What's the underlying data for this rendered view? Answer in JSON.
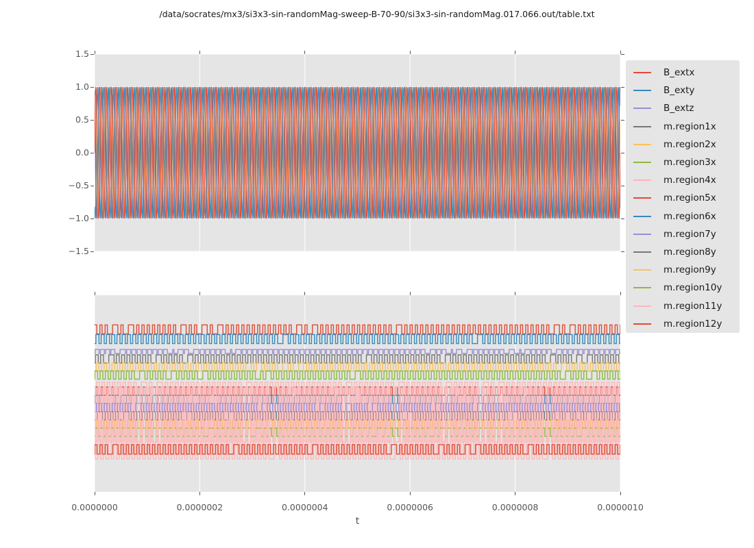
{
  "figure": {
    "title": "/data/socrates/mx3/si3x3-sin-randomMag-sweep-B-70-90/si3x3-sin-randomMag.017.066.out/table.txt"
  },
  "colors": {
    "figure_bg": "#ffffff",
    "axes_bg": "#e5e5e5",
    "grid": "#ffffff",
    "tick": "#555555",
    "text": "#1a1a1a",
    "palette": [
      "#E24A33",
      "#348ABD",
      "#988ED5",
      "#777777",
      "#FBC15E",
      "#8EBA42",
      "#FFB5B8"
    ]
  },
  "axes": {
    "xlabel": "t",
    "xtick_labels": [
      "0.0000000",
      "0.0000002",
      "0.0000004",
      "0.0000006",
      "0.0000008",
      "0.0000010"
    ],
    "xtick_values": [
      0,
      2e-07,
      4e-07,
      6e-07,
      8e-07,
      1e-06
    ],
    "top_ytick_labels": [
      "1.5",
      "1.0",
      "0.5",
      "0.0",
      "−0.5",
      "−1.0",
      "−1.5"
    ],
    "top_ytick_values": [
      1.5,
      1.0,
      0.5,
      0.0,
      -0.5,
      -1.0,
      -1.5
    ]
  },
  "legend": {
    "entries": [
      {
        "label": "B_extx",
        "color": "#E24A33"
      },
      {
        "label": "B_exty",
        "color": "#348ABD"
      },
      {
        "label": "B_extz",
        "color": "#988ED5"
      },
      {
        "label": "m.region1x",
        "color": "#777777"
      },
      {
        "label": "m.region2x",
        "color": "#FBC15E"
      },
      {
        "label": "m.region3x",
        "color": "#8EBA42"
      },
      {
        "label": "m.region4x",
        "color": "#FFB5B8"
      },
      {
        "label": "m.region5x",
        "color": "#E24A33"
      },
      {
        "label": "m.region6x",
        "color": "#348ABD"
      },
      {
        "label": "m.region7y",
        "color": "#988ED5"
      },
      {
        "label": "m.region8y",
        "color": "#777777"
      },
      {
        "label": "m.region9y",
        "color": "#FBC15E"
      },
      {
        "label": "m.region10y",
        "color": "#8EBA42"
      },
      {
        "label": "m.region11y",
        "color": "#FFB5B8"
      },
      {
        "label": "m.region12y",
        "color": "#E24A33"
      }
    ]
  },
  "chart_data": [
    {
      "subplot": "top",
      "type": "line",
      "xlim": [
        0,
        1e-06
      ],
      "ylim": [
        -1.5,
        1.5
      ],
      "xticks": [
        0,
        2e-07,
        4e-07,
        6e-07,
        8e-07,
        1e-06
      ],
      "yticks": [
        1.5,
        1.0,
        0.5,
        0.0,
        -0.5,
        -1.0,
        -1.5
      ],
      "grid": true,
      "xlabel": "",
      "ylabel": "",
      "title": "",
      "waveform": "sine",
      "frequency_hz": 100000000.0,
      "series": [
        {
          "name": "B_extx",
          "color": "#E24A33",
          "amplitude": 1.0,
          "phase_rad": 0.05
        },
        {
          "name": "B_exty",
          "color": "#348ABD",
          "amplitude": 1.0,
          "phase_rad": 4.15
        },
        {
          "name": "B_extz",
          "color": "#988ED5",
          "amplitude": 1.0,
          "phase_rad": 2.35
        },
        {
          "name": "m.region1x",
          "color": "#777777",
          "amplitude": 1.0,
          "phase_rad": 1.95
        },
        {
          "name": "m.region2x",
          "color": "#FBC15E",
          "amplitude": 0.98,
          "phase_rad": 0.55
        },
        {
          "name": "m.region3x",
          "color": "#8EBA42",
          "amplitude": 1.0,
          "phase_rad": 0.2
        },
        {
          "name": "m.region4x",
          "color": "#FFB5B8",
          "amplitude": 1.0,
          "phase_rad": 0.3
        },
        {
          "name": "m.region5x",
          "color": "#E24A33",
          "amplitude": 1.0,
          "phase_rad": 0.02
        },
        {
          "name": "m.region6x",
          "color": "#348ABD",
          "amplitude": 1.0,
          "phase_rad": 4.1
        },
        {
          "name": "m.region7y",
          "color": "#988ED5",
          "amplitude": 1.0,
          "phase_rad": 2.3
        },
        {
          "name": "m.region8y",
          "color": "#777777",
          "amplitude": 1.0,
          "phase_rad": 1.9
        },
        {
          "name": "m.region9y",
          "color": "#FBC15E",
          "amplitude": 0.97,
          "phase_rad": 0.5
        },
        {
          "name": "m.region10y",
          "color": "#8EBA42",
          "amplitude": 1.0,
          "phase_rad": 0.15
        },
        {
          "name": "m.region11y",
          "color": "#FFB5B8",
          "amplitude": 1.0,
          "phase_rad": 0.25
        },
        {
          "name": "m.region12y",
          "color": "#E24A33",
          "amplitude": 1.0,
          "phase_rad": 0.0
        }
      ]
    },
    {
      "subplot": "bottom",
      "type": "line",
      "xlim": [
        0,
        1e-06
      ],
      "xticks": [
        0,
        2e-07,
        4e-07,
        6e-07,
        8e-07,
        1e-06
      ],
      "yticks": [],
      "grid": true,
      "xlabel": "t",
      "ylabel": "",
      "title": "",
      "waveform": "square",
      "frequency_hz": 100000000.0,
      "glitch_probability": 0.08,
      "series": [
        {
          "name": "B_extx",
          "color": "#E24A33",
          "level_frac": 0.174,
          "amplitude_frac": 0.023,
          "duty": 0.42,
          "phase_frac": 0.0
        },
        {
          "name": "B_exty",
          "color": "#348ABD",
          "level_frac": 0.223,
          "amplitude_frac": 0.023,
          "duty": 0.58,
          "phase_frac": 0.25
        },
        {
          "name": "B_extz",
          "color": "#988ED5",
          "level_frac": 0.286,
          "amplitude_frac": 0.01,
          "duty": 0.75,
          "phase_frac": 0.1
        },
        {
          "name": "m.region1x",
          "color": "#777777",
          "level_frac": 0.324,
          "amplitude_frac": 0.021,
          "duty": 0.55,
          "phase_frac": 0.15
        },
        {
          "name": "m.region2x",
          "color": "#FBC15E",
          "level_frac": 0.366,
          "amplitude_frac": 0.021,
          "duty": 0.5,
          "phase_frac": 0.3
        },
        {
          "name": "m.region3x",
          "color": "#8EBA42",
          "level_frac": 0.406,
          "amplitude_frac": 0.021,
          "duty": 0.52,
          "phase_frac": 0.05
        },
        {
          "name": "m.region4x",
          "color": "#FFB5B8",
          "level_frac": 0.594,
          "amplitude_frac": 0.152,
          "duty": 0.5,
          "phase_frac": 0.4
        },
        {
          "name": "m.region5x",
          "color": "#E24A33",
          "level_frac": 0.488,
          "amplitude_frac": 0.021,
          "duty": 0.42,
          "phase_frac": 0.2
        },
        {
          "name": "m.region6x",
          "color": "#348ABD",
          "level_frac": 0.53,
          "amplitude_frac": 0.021,
          "duty": 0.55,
          "phase_frac": 0.1
        },
        {
          "name": "m.region7y",
          "color": "#988ED5",
          "level_frac": 0.571,
          "amplitude_frac": 0.021,
          "duty": 0.5,
          "phase_frac": 0.35
        },
        {
          "name": "m.region8y",
          "color": "#777777",
          "level_frac": 0.613,
          "amplitude_frac": 0.021,
          "duty": 0.52,
          "phase_frac": 0.05
        },
        {
          "name": "m.region9y",
          "color": "#FBC15E",
          "level_frac": 0.655,
          "amplitude_frac": 0.021,
          "duty": 0.48,
          "phase_frac": 0.25
        },
        {
          "name": "m.region10y",
          "color": "#8EBA42",
          "level_frac": 0.697,
          "amplitude_frac": 0.021,
          "duty": 0.5,
          "phase_frac": 0.15
        },
        {
          "name": "m.region11y",
          "color": "#FFB5B8",
          "level_frac": 0.65,
          "amplitude_frac": 0.183,
          "duty": 0.5,
          "phase_frac": 0.65
        },
        {
          "name": "m.region12y",
          "color": "#E24A33",
          "level_frac": 0.784,
          "amplitude_frac": 0.024,
          "duty": 0.45,
          "phase_frac": 0.0
        }
      ]
    }
  ]
}
